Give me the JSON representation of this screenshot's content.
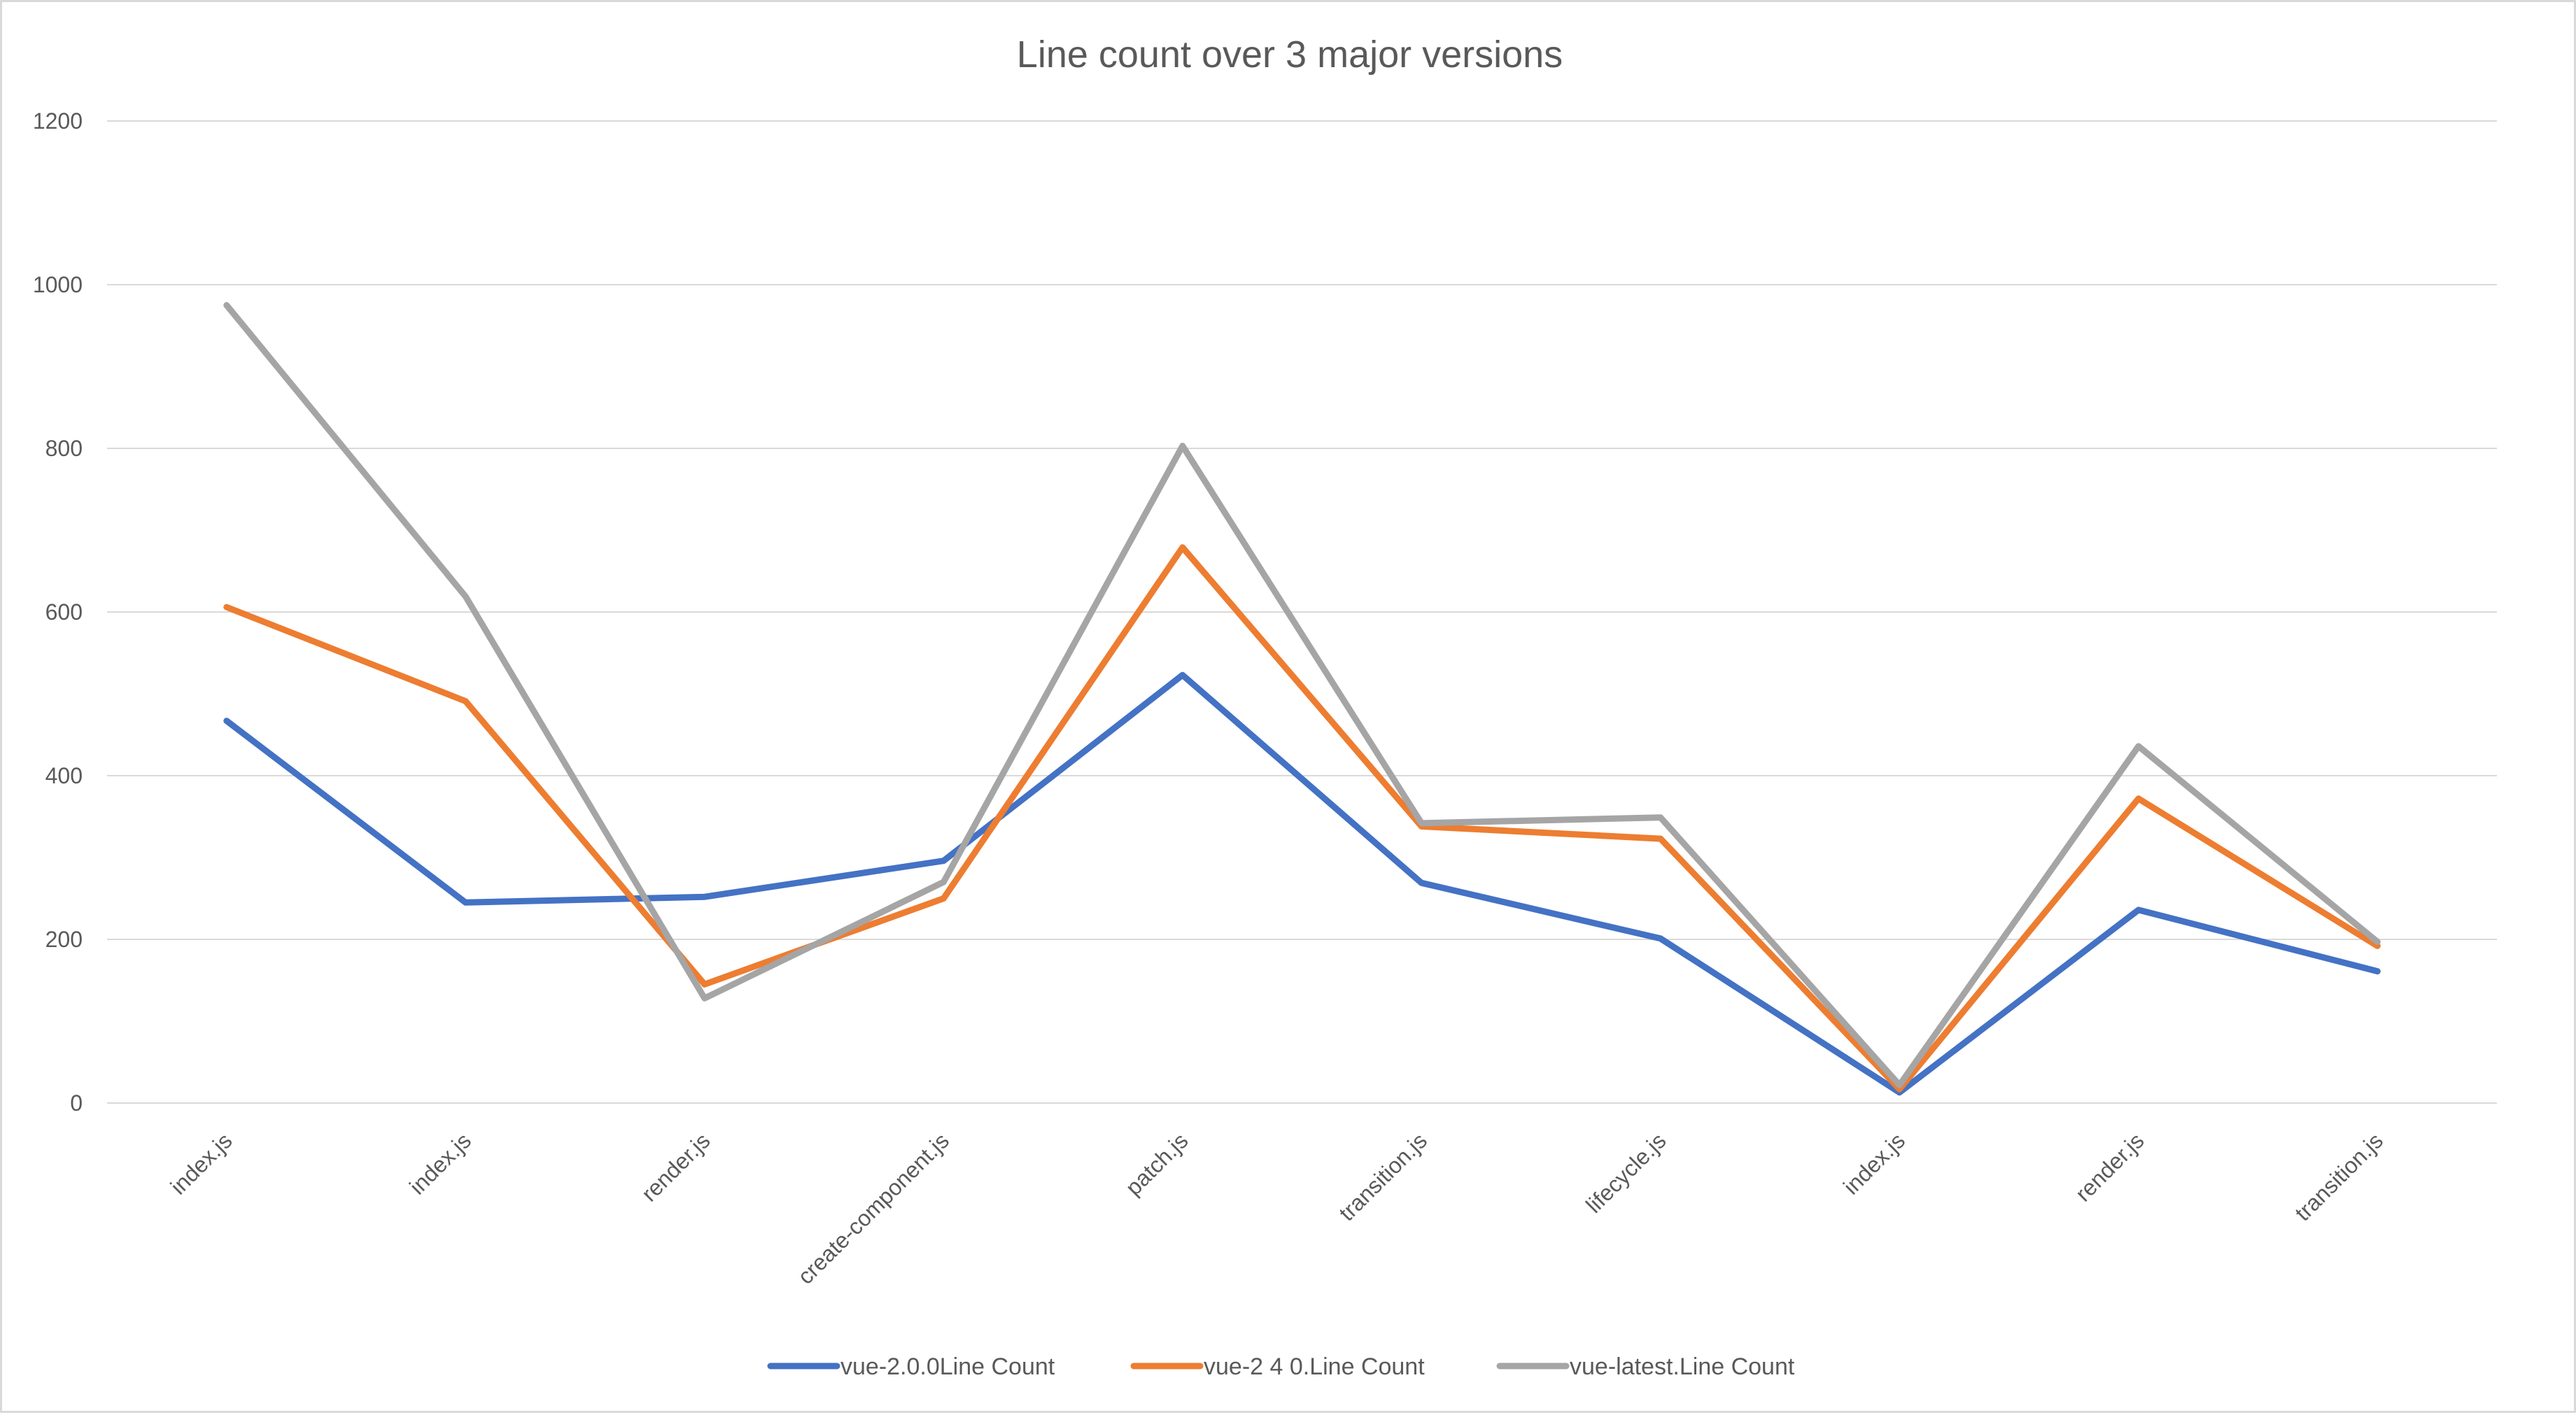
{
  "chart_data": {
    "type": "line",
    "title": "Line count over 3 major versions",
    "xlabel": "",
    "ylabel": "",
    "categories": [
      "index.js",
      "index.js",
      "render.js",
      "create-component.js",
      "patch.js",
      "transition.js",
      "lifecycle.js",
      "index.js",
      "render.js",
      "transition.js"
    ],
    "ylim": [
      0,
      1200
    ],
    "yticks": [
      0,
      200,
      400,
      600,
      800,
      1000,
      1200
    ],
    "grid": true,
    "legend_position": "bottom",
    "series": [
      {
        "name": "vue-2.0.0Line Count",
        "color": "#4472c4",
        "values": [
          467,
          245,
          252,
          296,
          523,
          269,
          201,
          13,
          236,
          161
        ]
      },
      {
        "name": "vue-2 4 0.Line Count",
        "color": "#ed7d31",
        "values": [
          606,
          491,
          145,
          250,
          679,
          338,
          323,
          17,
          372,
          192
        ]
      },
      {
        "name": "vue-latest.Line Count",
        "color": "#a5a5a5",
        "values": [
          975,
          619,
          128,
          270,
          803,
          342,
          349,
          22,
          436,
          197
        ]
      }
    ]
  }
}
